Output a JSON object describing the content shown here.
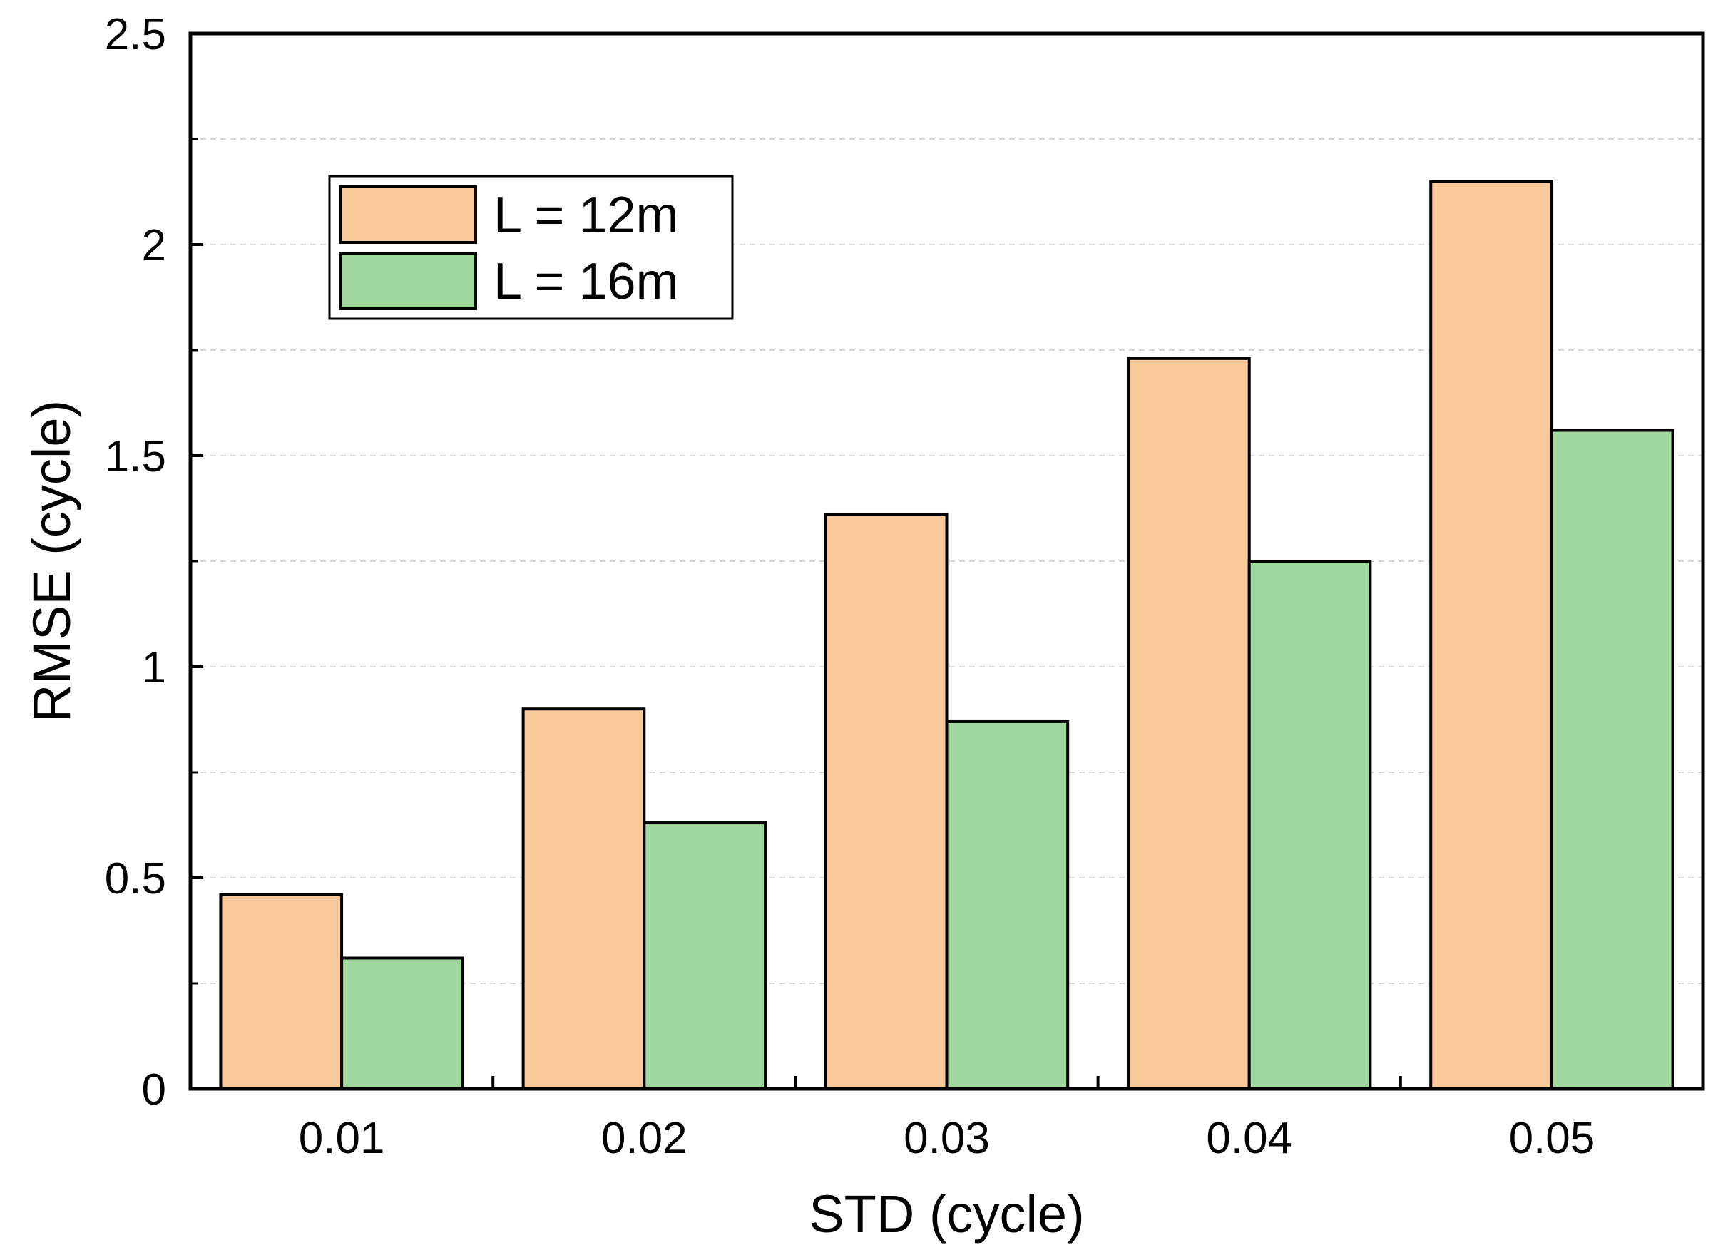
{
  "chart_data": {
    "type": "bar",
    "title": "",
    "xlabel": "STD (cycle)",
    "ylabel": "RMSE (cycle)",
    "categories": [
      "0.01",
      "0.02",
      "0.03",
      "0.04",
      "0.05"
    ],
    "series": [
      {
        "name": "L = 12m",
        "color": "#F9C99A",
        "values": [
          0.46,
          0.9,
          1.36,
          1.73,
          2.15
        ]
      },
      {
        "name": "L = 16m",
        "color": "#A0D89E",
        "values": [
          0.31,
          0.63,
          0.87,
          1.25,
          1.56
        ]
      }
    ],
    "ylim": [
      0,
      2.5
    ],
    "yticks": [
      0,
      0.5,
      1,
      1.5,
      2,
      2.5
    ],
    "ytick_labels": [
      "0",
      "0.5",
      "1",
      "1.5",
      "2",
      "2.5"
    ],
    "grid": true,
    "legend_position": "top-left",
    "bar_edge_color": "#000000"
  }
}
